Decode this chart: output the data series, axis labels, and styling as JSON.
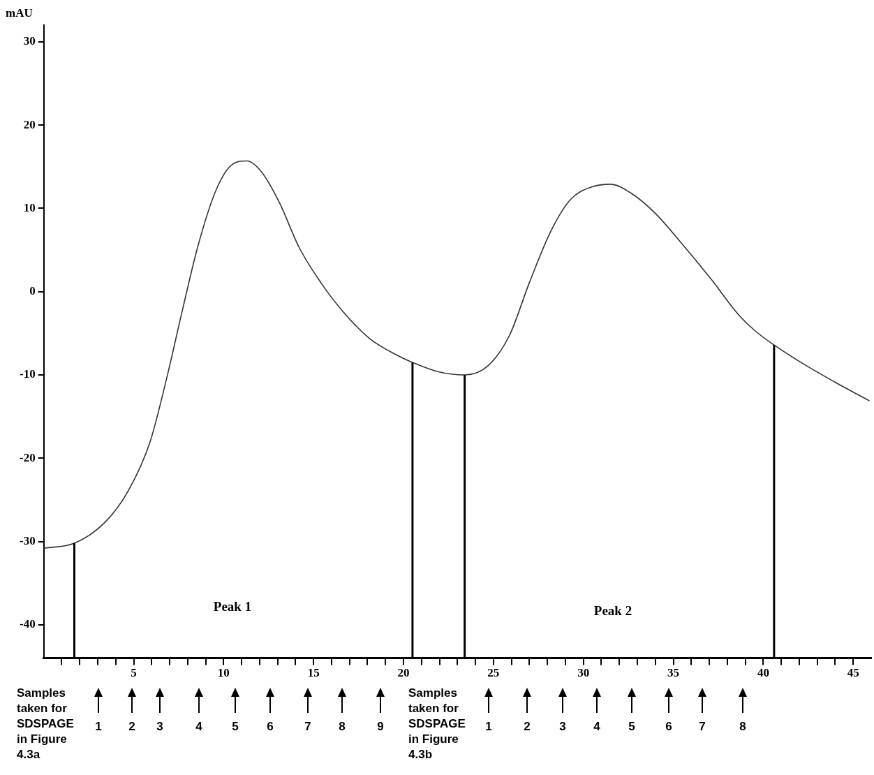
{
  "chart_data": {
    "type": "line",
    "ylabel": "mAU",
    "x": [
      0,
      1.7,
      3.4,
      4.7,
      5.9,
      6.9,
      7.7,
      8.6,
      9.6,
      10.5,
      11.3,
      12.1,
      13.1,
      14.2,
      15.4,
      16.6,
      18.1,
      19.7,
      20.5,
      21.9,
      23.4,
      24.7,
      25.9,
      27,
      28.2,
      29.3,
      30.5,
      31.5,
      32.6,
      34,
      35.5,
      37.1,
      38.6,
      39.6,
      40.6,
      42.1,
      44.1,
      45.9
    ],
    "series": [
      {
        "color": "#333333",
        "values": [
          -30.8,
          -30.2,
          -27.7,
          -23.9,
          -18.1,
          -9.8,
          -2.3,
          5.7,
          12.3,
          15.3,
          15.7,
          14.4,
          10.7,
          5.3,
          1.1,
          -2.3,
          -5.6,
          -7.7,
          -8.5,
          -9.6,
          -10,
          -8.9,
          -5.2,
          1.1,
          7.3,
          11.1,
          12.6,
          12.9,
          11.9,
          9.4,
          5.7,
          1.5,
          -2.7,
          -4.8,
          -6.4,
          -8.5,
          -11,
          -13.1
        ]
      }
    ],
    "xlim": [
      0,
      46
    ],
    "xticks": [
      {
        "value": 1,
        "label": null
      },
      {
        "value": 2,
        "label": null
      },
      {
        "value": 3,
        "label": null
      },
      {
        "value": 4,
        "label": null
      },
      5,
      {
        "value": 6,
        "label": null
      },
      {
        "value": 7,
        "label": null
      },
      {
        "value": 8,
        "label": null
      },
      {
        "value": 9,
        "label": null
      },
      10,
      {
        "value": 11,
        "label": null
      },
      {
        "value": 12,
        "label": null
      },
      {
        "value": 13,
        "label": null
      },
      {
        "value": 14,
        "label": null
      },
      15,
      {
        "value": 16,
        "label": null
      },
      {
        "value": 17,
        "label": null
      },
      {
        "value": 18,
        "label": null
      },
      {
        "value": 19,
        "label": null
      },
      20,
      {
        "value": 21,
        "label": null
      },
      {
        "value": 22,
        "label": null
      },
      {
        "value": 23,
        "label": null
      },
      {
        "value": 24,
        "label": null
      },
      25,
      {
        "value": 26,
        "label": null
      },
      {
        "value": 27,
        "label": null
      },
      {
        "value": 28,
        "label": null
      },
      {
        "value": 29,
        "label": null
      },
      30,
      {
        "value": 31,
        "label": null
      },
      {
        "value": 32,
        "label": null
      },
      {
        "value": 33,
        "label": null
      },
      {
        "value": 34,
        "label": null
      },
      35,
      {
        "value": 36,
        "label": null
      },
      {
        "value": 37,
        "label": null
      },
      {
        "value": 38,
        "label": null
      },
      {
        "value": 39,
        "label": null
      },
      40,
      {
        "value": 41,
        "label": null
      },
      {
        "value": 42,
        "label": null
      },
      {
        "value": 43,
        "label": null
      },
      {
        "value": 44,
        "label": null
      },
      45
    ],
    "ylim": [
      -44,
      32
    ],
    "yticks": [
      -40,
      -30,
      -20,
      -10,
      0,
      10,
      20,
      30
    ],
    "grid": false,
    "legend": false,
    "marker": "none",
    "ref_lines": [
      {
        "axis": "x",
        "value": 1.7,
        "color": "#000000"
      },
      {
        "axis": "x",
        "value": 20.5,
        "color": "#000000"
      },
      {
        "axis": "x",
        "value": 23.4,
        "color": "#000000"
      },
      {
        "axis": "x",
        "value": 40.6,
        "color": "#000000"
      }
    ],
    "annotations": [
      "Peak 1",
      "Peak 2",
      "Samples taken for SDSPAGE in Figure 4.3a",
      "1",
      "2",
      "3",
      "4",
      "5",
      "6",
      "7",
      "8",
      "9",
      "Samples taken for SDSPAGE in Figure 4.3b",
      "1",
      "2",
      "3",
      "4",
      "5",
      "6",
      "7",
      "8"
    ]
  }
}
